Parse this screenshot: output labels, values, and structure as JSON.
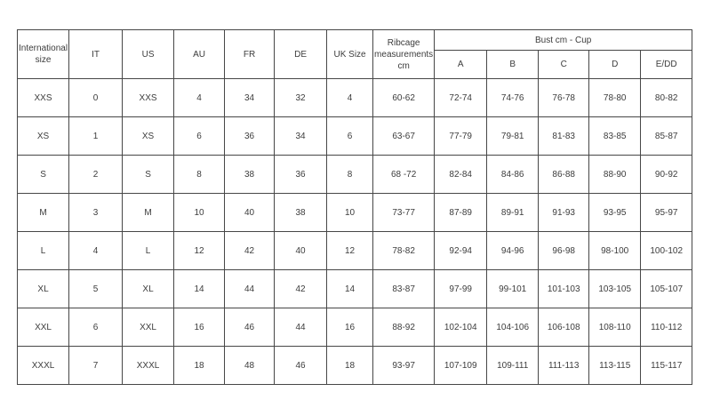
{
  "chart_data": {
    "type": "table",
    "group_label": "Bust cm - Cup",
    "columns": [
      "International size",
      "IT",
      "US",
      "AU",
      "FR",
      "DE",
      "UK Size",
      "Ribcage measurements cm",
      "A",
      "B",
      "C",
      "D",
      "E/DD"
    ],
    "rows": [
      [
        "XXS",
        "0",
        "XXS",
        "4",
        "34",
        "32",
        "4",
        "60-62",
        "72-74",
        "74-76",
        "76-78",
        "78-80",
        "80-82"
      ],
      [
        "XS",
        "1",
        "XS",
        "6",
        "36",
        "34",
        "6",
        "63-67",
        "77-79",
        "79-81",
        "81-83",
        "83-85",
        "85-87"
      ],
      [
        "S",
        "2",
        "S",
        "8",
        "38",
        "36",
        "8",
        "68 -72",
        "82-84",
        "84-86",
        "86-88",
        "88-90",
        "90-92"
      ],
      [
        "M",
        "3",
        "M",
        "10",
        "40",
        "38",
        "10",
        "73-77",
        "87-89",
        "89-91",
        "91-93",
        "93-95",
        "95-97"
      ],
      [
        "L",
        "4",
        "L",
        "12",
        "42",
        "40",
        "12",
        "78-82",
        "92-94",
        "94-96",
        "96-98",
        "98-100",
        "100-102"
      ],
      [
        "XL",
        "5",
        "XL",
        "14",
        "44",
        "42",
        "14",
        "83-87",
        "97-99",
        "99-101",
        "101-103",
        "103-105",
        "105-107"
      ],
      [
        "XXL",
        "6",
        "XXL",
        "16",
        "46",
        "44",
        "16",
        "88-92",
        "102-104",
        "104-106",
        "106-108",
        "108-110",
        "110-112"
      ],
      [
        "XXXL",
        "7",
        "XXXL",
        "18",
        "48",
        "46",
        "18",
        "93-97",
        "107-109",
        "109-111",
        "111-113",
        "113-115",
        "115-117"
      ]
    ],
    "layout": {
      "grid": "full-borders",
      "border_color": "#474747",
      "text_color": "#3c3c3c",
      "background": "#ffffff",
      "group_span_columns": [
        "A",
        "B",
        "C",
        "D",
        "E/DD"
      ]
    }
  }
}
